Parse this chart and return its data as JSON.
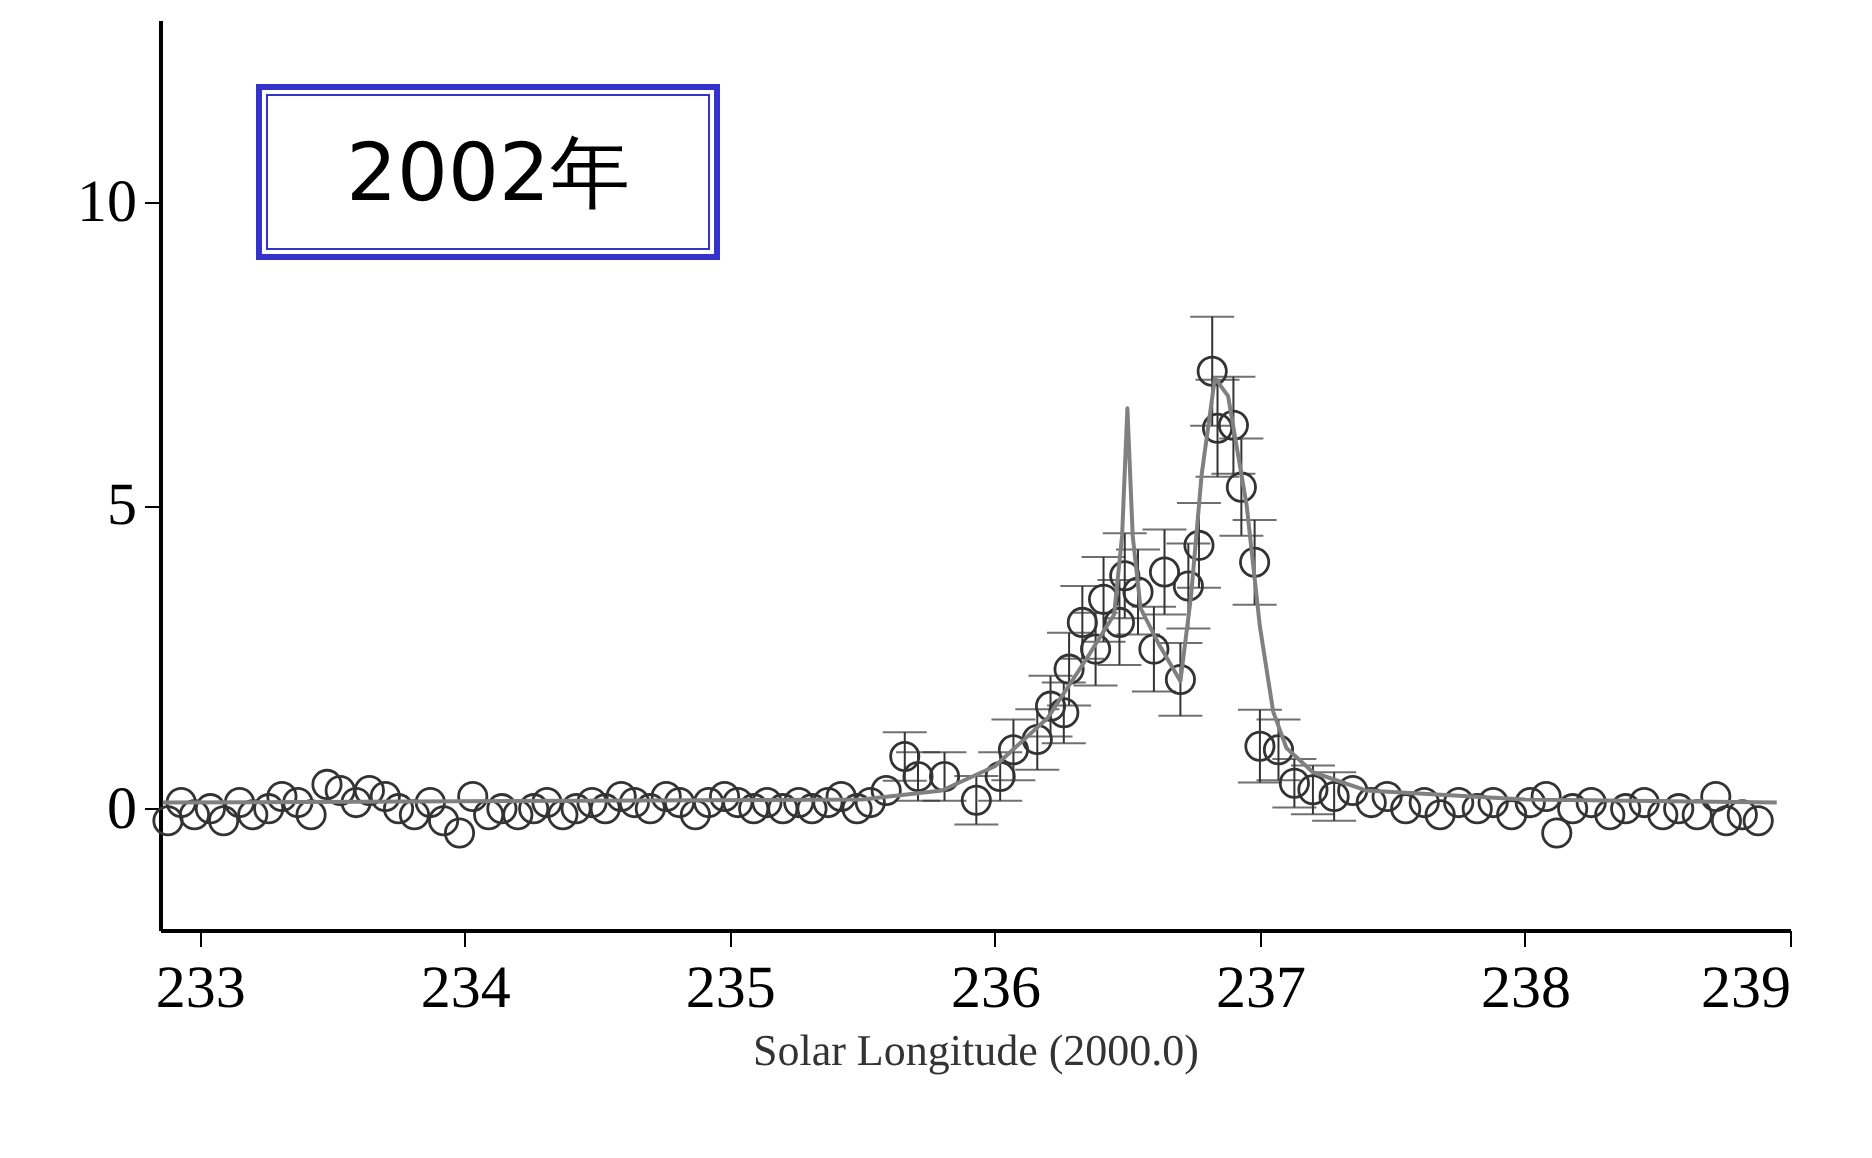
{
  "chart_data": {
    "type": "scatter",
    "annotations": [
      "2002年"
    ],
    "xlabel": "Solar Longitude (2000.0)",
    "xlim": [
      232.85,
      239
    ],
    "xticks": [
      233,
      234,
      235,
      236,
      237,
      238,
      239
    ],
    "ylim": [
      -2,
      13
    ],
    "yticks": [
      0,
      5,
      10
    ],
    "grid": false,
    "marker": "circle",
    "series": [
      {
        "color": "#333333",
        "x": [
          232.88,
          232.93,
          232.98,
          233.04,
          233.09,
          233.15,
          233.2,
          233.26,
          233.31,
          233.37,
          233.42,
          233.48,
          233.53,
          233.59,
          233.64,
          233.7,
          233.75,
          233.81,
          233.87,
          233.92,
          233.98,
          234.03,
          234.09,
          234.14,
          234.2,
          234.26,
          234.31,
          234.37,
          234.42,
          234.48,
          234.53,
          234.59,
          234.64,
          234.7,
          234.76,
          234.81,
          234.87,
          234.92,
          234.98,
          235.03,
          235.09,
          235.14,
          235.2,
          235.26,
          235.31,
          235.37,
          235.42,
          235.48,
          235.53,
          235.59,
          235.66,
          235.71,
          235.81,
          235.93,
          236.02,
          236.07,
          236.16,
          236.21,
          236.26,
          236.28,
          236.33,
          236.38,
          236.41,
          236.47,
          236.49,
          236.54,
          236.6,
          236.64,
          236.7,
          236.73,
          236.77,
          236.82,
          236.84,
          236.9,
          236.93,
          236.98,
          237.0,
          237.07,
          237.13,
          237.2,
          237.28,
          237.35,
          237.42,
          237.48,
          237.55,
          237.62,
          237.68,
          237.75,
          237.82,
          237.88,
          237.95,
          238.02,
          238.08,
          238.12,
          238.18,
          238.25,
          238.32,
          238.38,
          238.45,
          238.52,
          238.58,
          238.65,
          238.72,
          238.76,
          238.82,
          238.88
        ],
        "values": [
          -0.2,
          0.1,
          -0.1,
          0.0,
          -0.2,
          0.1,
          -0.1,
          0.0,
          0.2,
          0.1,
          -0.1,
          0.4,
          0.3,
          0.1,
          0.3,
          0.2,
          0.0,
          -0.1,
          0.1,
          -0.2,
          -0.4,
          0.2,
          -0.1,
          0.0,
          -0.1,
          0.0,
          0.1,
          -0.1,
          0.0,
          0.1,
          0.0,
          0.2,
          0.1,
          0.0,
          0.2,
          0.1,
          -0.1,
          0.1,
          0.2,
          0.1,
          0.0,
          0.1,
          0.0,
          0.1,
          0.0,
          0.1,
          0.2,
          0.0,
          0.1,
          0.3,
          0.86,
          0.53,
          0.53,
          0.14,
          0.53,
          0.97,
          1.14,
          1.69,
          1.58,
          2.3,
          3.07,
          2.63,
          3.45,
          3.07,
          3.84,
          3.57,
          2.63,
          3.9,
          2.13,
          3.67,
          4.34,
          7.21,
          6.27,
          6.32,
          5.3,
          4.06,
          1.03,
          0.97,
          0.42,
          0.31,
          0.2,
          0.3,
          0.1,
          0.2,
          0.0,
          0.1,
          -0.1,
          0.1,
          0.0,
          0.1,
          -0.1,
          0.1,
          0.2,
          -0.4,
          0.0,
          0.1,
          -0.1,
          0.0,
          0.1,
          -0.1,
          0.0,
          -0.1,
          0.2,
          -0.2,
          -0.1,
          -0.2
        ],
        "errors": [
          null,
          null,
          null,
          null,
          null,
          null,
          null,
          null,
          null,
          null,
          null,
          null,
          null,
          null,
          null,
          null,
          null,
          null,
          null,
          null,
          null,
          null,
          null,
          null,
          null,
          null,
          null,
          null,
          null,
          null,
          null,
          null,
          null,
          null,
          null,
          null,
          null,
          null,
          null,
          null,
          null,
          null,
          null,
          null,
          null,
          null,
          null,
          null,
          null,
          null,
          0.4,
          0.4,
          0.4,
          0.4,
          0.4,
          0.5,
          0.5,
          0.5,
          0.5,
          0.6,
          0.6,
          0.6,
          0.7,
          0.7,
          0.7,
          0.7,
          0.7,
          0.7,
          0.6,
          0.7,
          0.7,
          0.9,
          0.8,
          0.8,
          0.8,
          0.7,
          0.6,
          0.5,
          0.4,
          0.4,
          0.4,
          null,
          null,
          null,
          null,
          null,
          null,
          null,
          null,
          null,
          null,
          null,
          null,
          null,
          null,
          null,
          null,
          null,
          null,
          null,
          null,
          null,
          null,
          null,
          null,
          null
        ]
      },
      {
        "type": "line",
        "marker": "none",
        "color": "#808080",
        "x": [
          232.86,
          235.5,
          235.8,
          236.0,
          236.2,
          236.35,
          236.45,
          236.48,
          236.5,
          236.52,
          236.55,
          236.62,
          236.7,
          236.74,
          236.78,
          236.83,
          236.88,
          236.95,
          237.0,
          237.05,
          237.1,
          237.2,
          237.4,
          238.0,
          238.95
        ],
        "values": [
          0.1,
          0.15,
          0.3,
          0.7,
          1.5,
          2.5,
          3.2,
          4.5,
          6.6,
          4.5,
          3.3,
          2.7,
          2.1,
          3.5,
          5.5,
          7.1,
          6.8,
          5.0,
          3.0,
          1.6,
          1.0,
          0.6,
          0.3,
          0.15,
          0.1
        ]
      }
    ]
  }
}
